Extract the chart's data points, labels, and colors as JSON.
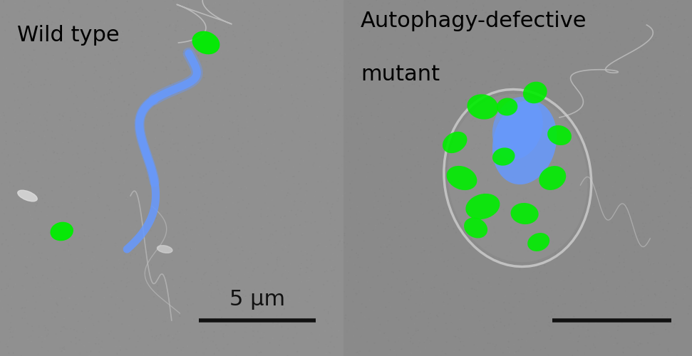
{
  "fig_width": 9.71,
  "fig_height": 5.0,
  "dpi": 100,
  "left_label": "Wild type",
  "right_label_line1": "Autophagy-defective",
  "right_label_line2": "mutant",
  "scalebar_label": "5 μm",
  "label_fontsize": 22,
  "scalebar_fontsize": 22,
  "label_color": "#000000",
  "green_color": "#00ee00",
  "blue_color": "#6699ff",
  "left_panel_bg": "#909090",
  "right_panel_bg": "#8a8a8a"
}
